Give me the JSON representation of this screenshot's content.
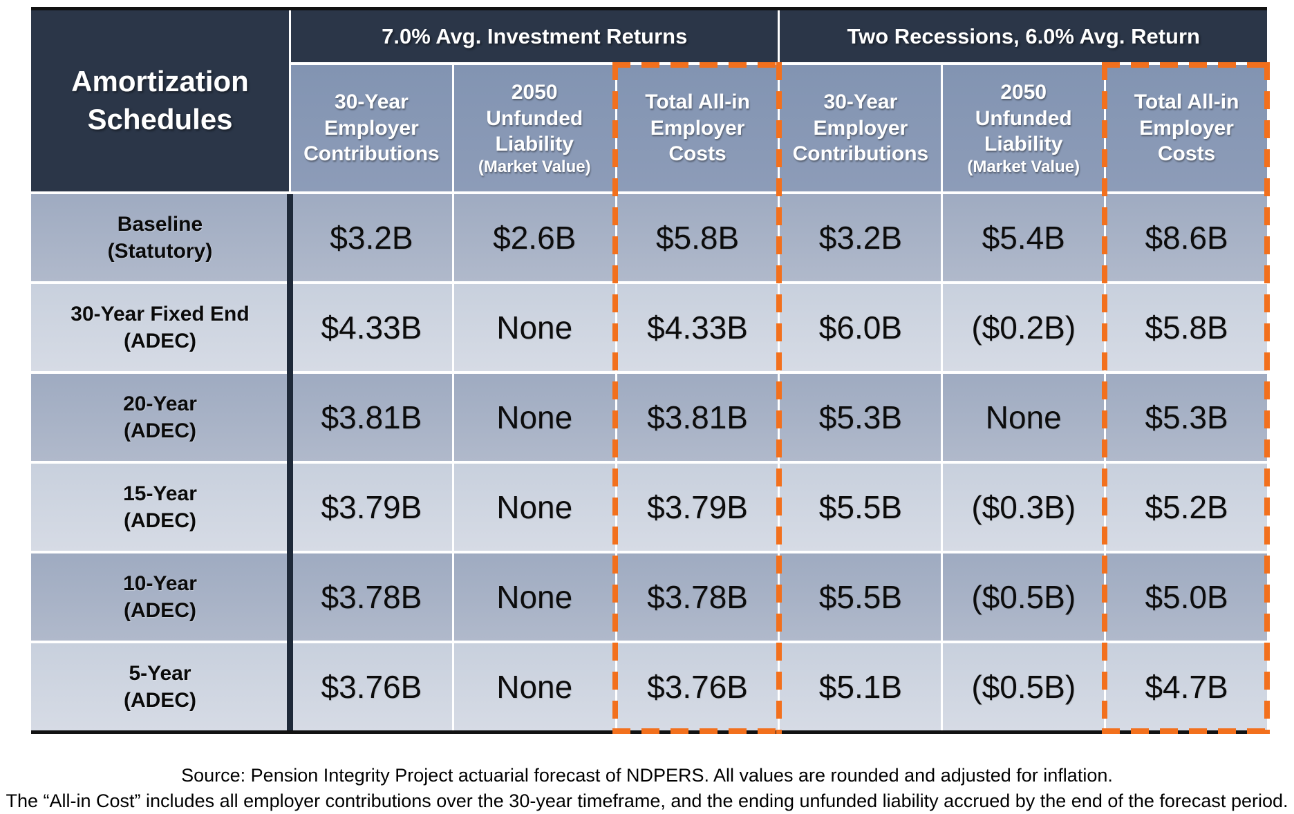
{
  "colors": {
    "header_navy": "#2b3648",
    "column_header_blue": "#8897b5",
    "row_dark": "#a7b1c5",
    "row_light": "#cfd5e1",
    "highlight_orange": "#f2701d",
    "divider_dark": "#1e2939"
  },
  "table": {
    "corner_title": "Amortization\nSchedules",
    "groups": [
      {
        "label": "7.0% Avg. Investment Returns"
      },
      {
        "label": "Two Recessions, 6.0% Avg. Return"
      }
    ],
    "columns": [
      {
        "title": "30-Year\nEmployer\nContributions",
        "subtitle": ""
      },
      {
        "title": "2050\nUnfunded\nLiability",
        "subtitle": "(Market Value)"
      },
      {
        "title": "Total All-in\nEmployer\nCosts",
        "subtitle": ""
      },
      {
        "title": "30-Year\nEmployer\nContributions",
        "subtitle": ""
      },
      {
        "title": "2050\nUnfunded\nLiability",
        "subtitle": "(Market Value)"
      },
      {
        "title": "Total All-in\nEmployer\nCosts",
        "subtitle": ""
      }
    ],
    "rows": [
      {
        "label": "Baseline\n(Statutory)",
        "values": [
          "$3.2B",
          "$2.6B",
          "$5.8B",
          "$3.2B",
          "$5.4B",
          "$8.6B"
        ]
      },
      {
        "label": "30-Year Fixed End\n(ADEC)",
        "values": [
          "$4.33B",
          "None",
          "$4.33B",
          "$6.0B",
          "($0.2B)",
          "$5.8B"
        ]
      },
      {
        "label": "20-Year\n(ADEC)",
        "values": [
          "$3.81B",
          "None",
          "$3.81B",
          "$5.3B",
          "None",
          "$5.3B"
        ]
      },
      {
        "label": "15-Year\n(ADEC)",
        "values": [
          "$3.79B",
          "None",
          "$3.79B",
          "$5.5B",
          "($0.3B)",
          "$5.2B"
        ]
      },
      {
        "label": "10-Year\n(ADEC)",
        "values": [
          "$3.78B",
          "None",
          "$3.78B",
          "$5.5B",
          "($0.5B)",
          "$5.0B"
        ]
      },
      {
        "label": "5-Year\n(ADEC)",
        "values": [
          "$3.76B",
          "None",
          "$3.76B",
          "$5.1B",
          "($0.5B)",
          "$4.7B"
        ]
      }
    ]
  },
  "footer": {
    "line1": "Source: Pension Integrity Project actuarial forecast of NDPERS. All values are rounded and adjusted for inflation.",
    "line2": "The “All-in Cost” includes all employer contributions over the 30-year timeframe, and the ending unfunded liability accrued by the end of the forecast period."
  }
}
